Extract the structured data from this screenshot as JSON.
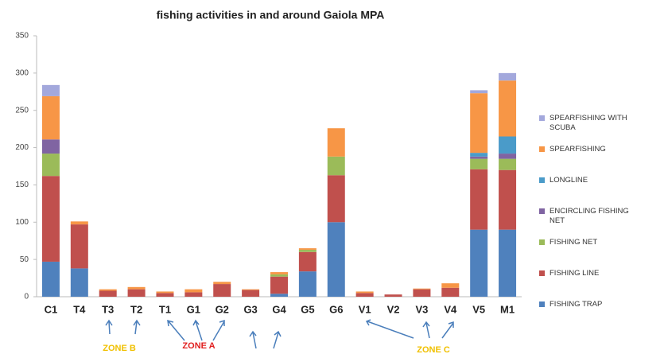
{
  "chart_data": {
    "type": "stacked_bar",
    "title": "fishing activities in and around Gaiola MPA",
    "categories": [
      "C1",
      "T4",
      "T3",
      "T2",
      "T1",
      "G1",
      "G2",
      "G3",
      "G4",
      "G5",
      "G6",
      "V1",
      "V2",
      "V3",
      "V4",
      "V5",
      "M1"
    ],
    "series": [
      {
        "name": "FISHING TRAP",
        "color": "#4f81bd",
        "values": [
          47,
          38,
          0,
          0,
          0,
          0,
          0,
          0,
          4,
          34,
          100,
          0,
          0,
          0,
          0,
          90,
          90
        ]
      },
      {
        "name": "FISHING LINE",
        "color": "#c0504d",
        "values": [
          115,
          59,
          8,
          10,
          5,
          6,
          17,
          9,
          23,
          26,
          63,
          5,
          3,
          10,
          12,
          81,
          80
        ]
      },
      {
        "name": "FISHING NET",
        "color": "#9bbb59",
        "values": [
          30,
          0,
          0,
          0,
          0,
          0,
          0,
          0,
          3,
          3,
          25,
          0,
          0,
          0,
          0,
          14,
          15
        ]
      },
      {
        "name": "ENCIRCLING FISHING NET",
        "color": "#8064a2",
        "values": [
          19,
          0,
          0,
          0,
          0,
          0,
          0,
          0,
          0,
          0,
          0,
          0,
          0,
          0,
          0,
          3,
          7
        ]
      },
      {
        "name": "LONGLINE",
        "color": "#4a9bc9",
        "values": [
          0,
          0,
          0,
          0,
          0,
          0,
          0,
          0,
          0,
          0,
          0,
          0,
          0,
          0,
          0,
          5,
          23
        ]
      },
      {
        "name": "SPEARFISHING",
        "color": "#f79646",
        "values": [
          58,
          4,
          2,
          3,
          2,
          4,
          3,
          1,
          3,
          2,
          38,
          2,
          0,
          1,
          6,
          80,
          75
        ]
      },
      {
        "name": "SPEARFISHING WITH SCUBA",
        "color": "#a3a8dc",
        "values": [
          15,
          0,
          0,
          0,
          0,
          0,
          0,
          0,
          0,
          0,
          0,
          0,
          0,
          0,
          0,
          4,
          10
        ]
      }
    ],
    "ylim": [
      0,
      350
    ],
    "yticks": [
      0,
      50,
      100,
      150,
      200,
      250,
      300,
      350
    ],
    "grid": false,
    "annotations": [
      {
        "text": "ZONE B",
        "color": "#f0c000"
      },
      {
        "text": "ZONE A",
        "color": "#e02020"
      },
      {
        "text": "ZONE C",
        "color": "#f0c000"
      }
    ]
  }
}
